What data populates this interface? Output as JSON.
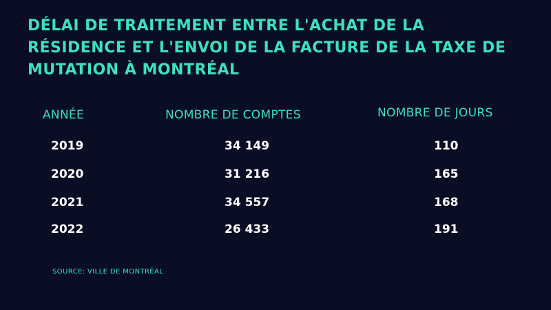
{
  "colors": {
    "background": "#0a0e24",
    "accent": "#3ee0c0",
    "text": "#ffffff"
  },
  "title_lines": [
    "DÉLAI DE TRAITEMENT ENTRE L'ACHAT DE LA",
    "RÉSIDENCE ET L'ENVOI DE LA FACTURE DE LA TAXE DE",
    "MUTATION À MONTRÉAL"
  ],
  "chart_data": {
    "type": "table",
    "title": "DÉLAI DE TRAITEMENT ENTRE L'ACHAT DE LA RÉSIDENCE ET L'ENVOI DE LA FACTURE DE LA TAXE DE MUTATION À MONTRÉAL",
    "columns": [
      "ANNÉE",
      "NOMBRE DE COMPTES",
      "NOMBRE DE JOURS"
    ],
    "rows": [
      [
        "2019",
        "34 149",
        "110"
      ],
      [
        "2020",
        "31 216",
        "165"
      ],
      [
        "2021",
        "34 557",
        "168"
      ],
      [
        "2022",
        "26 433",
        "191"
      ]
    ]
  },
  "source": "SOURCE: VILLE DE MONTRÉAL"
}
